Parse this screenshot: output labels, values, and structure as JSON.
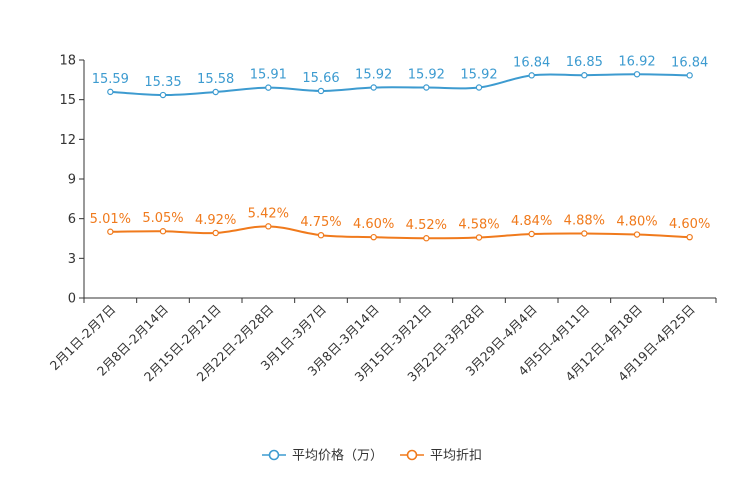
{
  "chart_data": {
    "type": "line",
    "title": "",
    "xlabel": "",
    "ylabel": "",
    "ylim": [
      0,
      18
    ],
    "yticks": [
      0,
      3,
      6,
      9,
      12,
      15,
      18
    ],
    "categories": [
      "2月1日-2月7日",
      "2月8日-2月14日",
      "2月15日-2月21日",
      "2月22日-2月28日",
      "3月1日-3月7日",
      "3月8日-3月14日",
      "3月15日-3月21日",
      "3月22日-3月28日",
      "3月29日-4月4日",
      "4月5日-4月11日",
      "4月12日-4月18日",
      "4月19日-4月25日"
    ],
    "series": [
      {
        "name": "平均价格（万）",
        "color": "#3d9bd0",
        "values": [
          15.59,
          15.35,
          15.58,
          15.91,
          15.66,
          15.92,
          15.92,
          15.92,
          16.84,
          16.85,
          16.92,
          16.84
        ],
        "labels": [
          "15.59",
          "15.35",
          "15.58",
          "15.91",
          "15.66",
          "15.92",
          "15.92",
          "15.92",
          "16.84",
          "16.85",
          "16.92",
          "16.84"
        ]
      },
      {
        "name": "平均折扣",
        "color": "#f07a1c",
        "values": [
          5.01,
          5.05,
          4.92,
          5.42,
          4.75,
          4.6,
          4.52,
          4.58,
          4.84,
          4.88,
          4.8,
          4.6
        ],
        "labels": [
          "5.01%",
          "5.05%",
          "4.92%",
          "5.42%",
          "4.75%",
          "4.60%",
          "4.52%",
          "4.58%",
          "4.84%",
          "4.88%",
          "4.80%",
          "4.60%"
        ]
      }
    ],
    "legend_position": "bottom-center",
    "grid": false
  }
}
